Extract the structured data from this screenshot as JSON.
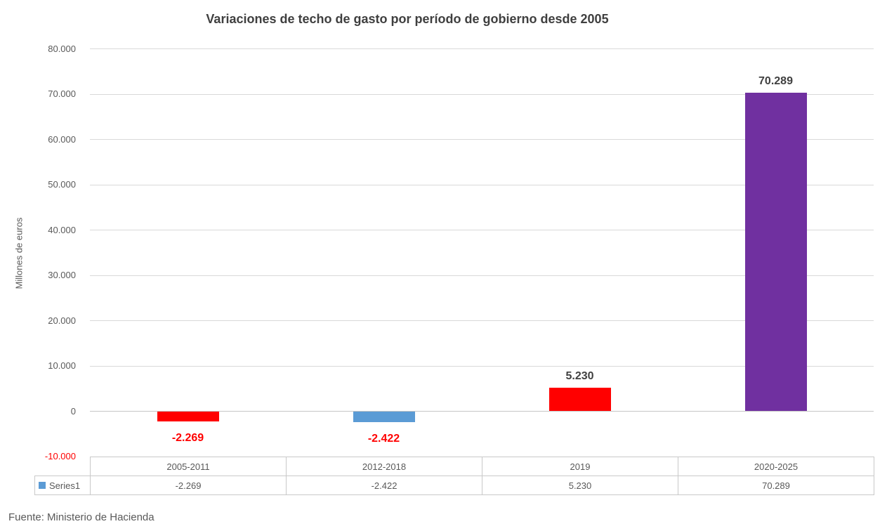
{
  "chart_data": {
    "type": "bar",
    "title": "Variaciones de techo de gasto por período de gobierno desde 2005",
    "ylabel": "Millones de euros",
    "xlabel": "",
    "categories": [
      "2005-2011",
      "2012-2018",
      "2019",
      "2020-2025"
    ],
    "series": [
      {
        "name": "Series1",
        "values": [
          -2269,
          -2422,
          5230,
          70289
        ]
      }
    ],
    "value_labels": [
      "-2.269",
      "-2.422",
      "5.230",
      "70.289"
    ],
    "bar_colors": [
      "#ff0000",
      "#5b9bd5",
      "#ff0000",
      "#7030a0"
    ],
    "value_label_colors": [
      "#ff0000",
      "#ff0000",
      "#404040",
      "#404040"
    ],
    "ylim": [
      -10000,
      80000
    ],
    "ytick_step": 10000,
    "yticks": [
      {
        "value": 80000,
        "label": "80.000",
        "color": "#595959"
      },
      {
        "value": 70000,
        "label": "70.000",
        "color": "#595959"
      },
      {
        "value": 60000,
        "label": "60.000",
        "color": "#595959"
      },
      {
        "value": 50000,
        "label": "50.000",
        "color": "#595959"
      },
      {
        "value": 40000,
        "label": "40.000",
        "color": "#595959"
      },
      {
        "value": 30000,
        "label": "30.000",
        "color": "#595959"
      },
      {
        "value": 20000,
        "label": "20.000",
        "color": "#595959"
      },
      {
        "value": 10000,
        "label": "10.000",
        "color": "#595959"
      },
      {
        "value": 0,
        "label": "0",
        "color": "#595959"
      },
      {
        "value": -10000,
        "label": "-10.000",
        "color": "#ff0000"
      }
    ],
    "grid": true,
    "legend": {
      "label": "Series1",
      "marker_color": "#5b9bd5",
      "position": "data-table"
    }
  },
  "source_note": "Fuente: Ministerio de Hacienda"
}
